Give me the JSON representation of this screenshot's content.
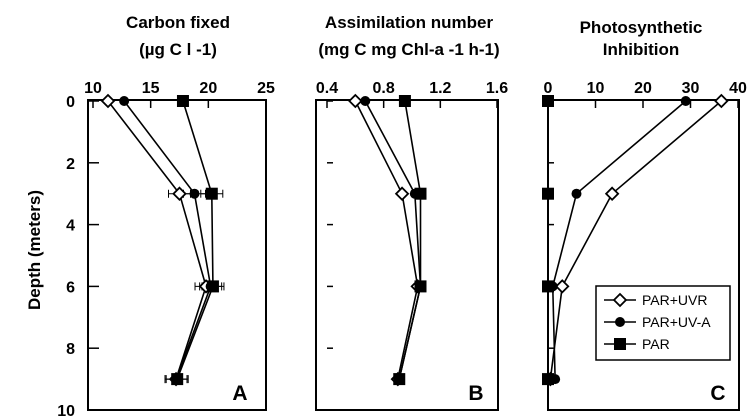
{
  "chart_data": [
    {
      "type": "line",
      "panel": "A",
      "title_lines": [
        "Carbon fixed",
        "(µg C l -1)"
      ],
      "xlabel": "Carbon fixed (µg C l -1)",
      "ylabel": "Depth (meters)",
      "xlim": [
        10,
        25
      ],
      "xticks": [
        "10",
        "15",
        "20",
        "25"
      ],
      "ylim": [
        0,
        10
      ],
      "y_inverted": true,
      "yticks": [
        "0",
        "2",
        "4",
        "6",
        "8",
        "10"
      ],
      "x_axis_position": "top",
      "depth": [
        0,
        3,
        6,
        9
      ],
      "series": [
        {
          "name": "PAR+UVR",
          "marker": "diamond-open",
          "x": [
            11.3,
            17.5,
            19.8,
            17.2
          ]
        },
        {
          "name": "PAR+UV-A",
          "marker": "circle-filled",
          "x": [
            12.7,
            18.8,
            20.2,
            17.2
          ]
        },
        {
          "name": "PAR",
          "marker": "square-filled",
          "x": [
            17.8,
            20.3,
            20.4,
            17.3
          ]
        }
      ],
      "error_bars": "horizontal, small"
    },
    {
      "type": "line",
      "panel": "B",
      "title_lines": [
        "Assimilation number",
        "(mg C mg Chl-a  -1 h-1)"
      ],
      "xlabel": "Assimilation number (mg C mg Chl-a -1 h-1)",
      "xlim": [
        0.4,
        1.6
      ],
      "xticks": [
        "0.4",
        "0.8",
        "1.2",
        "1.6"
      ],
      "ylim": [
        0,
        10
      ],
      "y_inverted": true,
      "x_axis_position": "top",
      "depth": [
        0,
        3,
        6,
        9
      ],
      "series": [
        {
          "name": "PAR+UVR",
          "marker": "diamond-open",
          "x": [
            0.6,
            0.93,
            1.04,
            0.9
          ]
        },
        {
          "name": "PAR+UV-A",
          "marker": "circle-filled",
          "x": [
            0.67,
            1.02,
            1.06,
            0.91
          ]
        },
        {
          "name": "PAR",
          "marker": "square-filled",
          "x": [
            0.95,
            1.06,
            1.06,
            0.91
          ]
        }
      ]
    },
    {
      "type": "line",
      "panel": "C",
      "title_lines": [
        "Photosynthetic",
        "Inhibition"
      ],
      "xlabel": "Photosynthetic Inhibition",
      "xlim": [
        0,
        40
      ],
      "xticks": [
        "0",
        "10",
        "20",
        "30",
        "40"
      ],
      "ylim": [
        0,
        10
      ],
      "y_inverted": true,
      "x_axis_position": "top",
      "depth": [
        0,
        3,
        6,
        9
      ],
      "series": [
        {
          "name": "PAR+UVR",
          "marker": "diamond-open",
          "x": [
            36.5,
            13.5,
            3.0,
            0.5
          ]
        },
        {
          "name": "PAR+UV-A",
          "marker": "circle-filled",
          "x": [
            29,
            6,
            1.0,
            1.5
          ]
        },
        {
          "name": "PAR",
          "marker": "square-filled",
          "x": [
            0,
            0,
            0,
            0
          ]
        }
      ],
      "legend": {
        "position": "lower-right",
        "entries": [
          "PAR+UVR",
          "PAR+UV-A",
          "PAR"
        ]
      }
    }
  ]
}
